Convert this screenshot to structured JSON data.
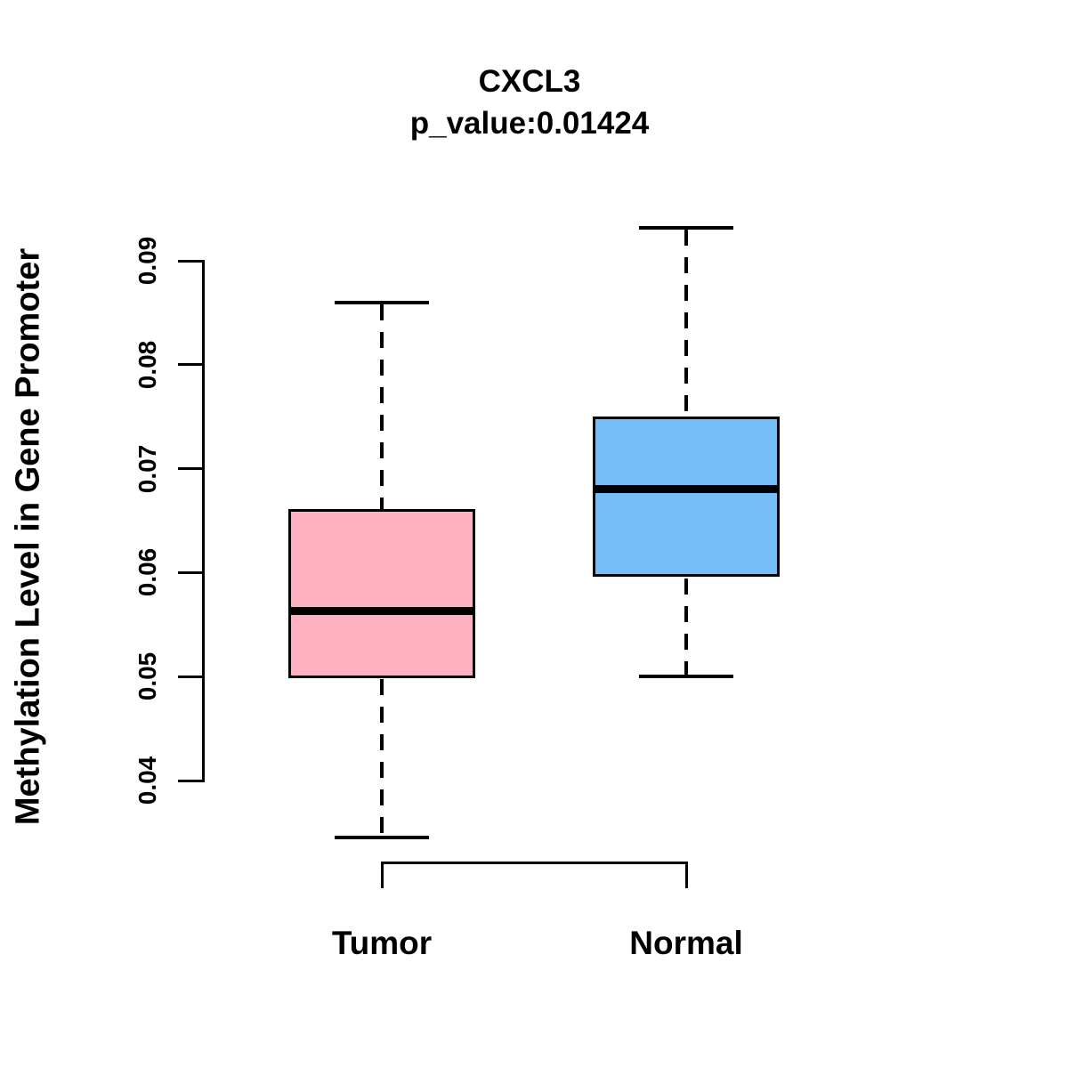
{
  "chart_data": {
    "type": "boxplot",
    "title": "CXCL3",
    "subtitle": "p_value:0.01424",
    "xlabel": "",
    "ylabel": "Methylation Level in Gene Promoter",
    "categories": [
      "Tumor",
      "Normal"
    ],
    "yticks": [
      0.04,
      0.05,
      0.06,
      0.07,
      0.08,
      0.09
    ],
    "ytick_labels": [
      "0.04",
      "0.05",
      "0.06",
      "0.07",
      "0.08",
      "0.09"
    ],
    "ylim": [
      0.033,
      0.094
    ],
    "grid": "off",
    "legend": "none",
    "groups": [
      {
        "name": "Tumor",
        "box_color": "#FFB1C1",
        "lower_whisker": 0.0345,
        "q1": 0.05,
        "median": 0.0563,
        "q3": 0.066,
        "upper_whisker": 0.086
      },
      {
        "name": "Normal",
        "box_color": "#75BFF8",
        "lower_whisker": 0.05,
        "q1": 0.0597,
        "median": 0.068,
        "q3": 0.0749,
        "upper_whisker": 0.0932
      }
    ],
    "style": {
      "line_color": "#000000",
      "background": "#FFFFFF",
      "whisker_linestyle": "dashed",
      "box_border_color": "#000000",
      "median_color": "#000000"
    }
  }
}
